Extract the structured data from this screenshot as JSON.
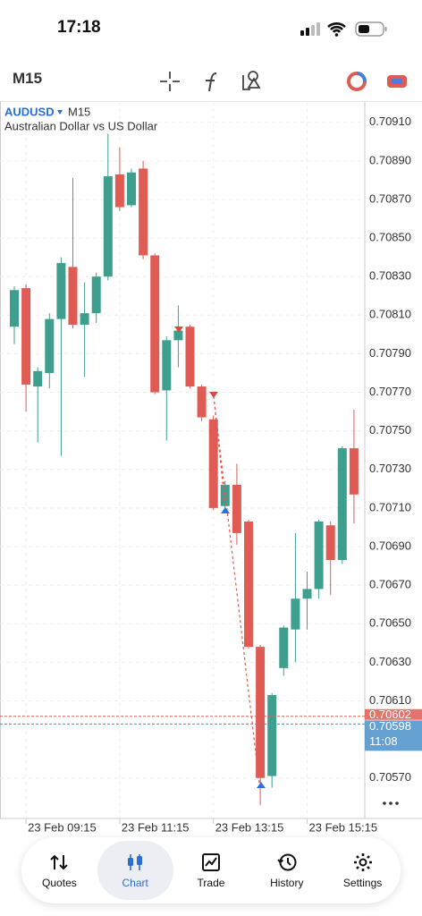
{
  "status_bar": {
    "time": "17:18"
  },
  "toolbar": {
    "timeframe": "M15"
  },
  "chart_data": {
    "type": "candlestick",
    "title": "AUDUSD",
    "subtitle": "M15",
    "description": "Australian Dollar vs US Dollar",
    "categories": [
      null,
      "23 Feb 09:15",
      null,
      null,
      null,
      null,
      null,
      null,
      null,
      "23 Feb 11:15",
      null,
      null,
      null,
      null,
      null,
      null,
      null,
      "23 Feb 13:15",
      null,
      null,
      null,
      null,
      null,
      null,
      null,
      "23 Feb 15:15",
      null,
      null,
      null,
      null
    ],
    "series": {
      "open": [
        0.70804,
        0.70824,
        0.70773,
        0.7078,
        0.70808,
        0.70835,
        0.70805,
        0.70811,
        0.7083,
        0.70883,
        0.70867,
        0.70886,
        0.70841,
        0.70771,
        0.70797,
        0.70804,
        0.70773,
        0.70756,
        0.70711,
        0.70722,
        0.70703,
        0.70638,
        0.70571,
        0.70627,
        0.70647,
        0.70663,
        0.70668,
        0.70701,
        0.70683,
        0.70741
      ],
      "high": [
        0.70825,
        0.70826,
        0.70783,
        0.70811,
        0.7084,
        0.70881,
        0.70827,
        0.70832,
        0.70904,
        0.70897,
        0.70886,
        0.7089,
        0.70842,
        0.70799,
        0.70815,
        0.70805,
        0.70774,
        0.70758,
        0.70724,
        0.70733,
        0.70704,
        0.70639,
        0.70614,
        0.70649,
        0.70697,
        0.70677,
        0.70704,
        0.70703,
        0.70742,
        0.70761
      ],
      "low": [
        0.70795,
        0.7076,
        0.70744,
        0.70772,
        0.70737,
        0.70803,
        0.70778,
        0.70806,
        0.70828,
        0.70864,
        0.70866,
        0.70839,
        0.70769,
        0.70745,
        0.70783,
        0.70772,
        0.70755,
        0.70709,
        0.7071,
        0.70691,
        0.70637,
        0.70556,
        0.70565,
        0.70623,
        0.7063,
        0.70647,
        0.70663,
        0.70665,
        0.70681,
        0.70702
      ],
      "close": [
        0.70823,
        0.70774,
        0.70781,
        0.70808,
        0.70837,
        0.70805,
        0.70811,
        0.7083,
        0.70882,
        0.70866,
        0.70884,
        0.70841,
        0.7077,
        0.70797,
        0.70802,
        0.70773,
        0.70757,
        0.7071,
        0.70722,
        0.70697,
        0.70638,
        0.7057,
        0.70613,
        0.70648,
        0.70663,
        0.70668,
        0.70703,
        0.70683,
        0.70741,
        0.70717
      ]
    },
    "up_color": "#3f9f8f",
    "down_color": "#e05b53",
    "ylim": [
      0.70549,
      0.70921
    ],
    "yticks": [
      {
        "value": 0.7091,
        "label": "0.70910"
      },
      {
        "value": 0.7089,
        "label": "0.70890"
      },
      {
        "value": 0.7087,
        "label": "0.70870"
      },
      {
        "value": 0.7085,
        "label": "0.70850"
      },
      {
        "value": 0.7083,
        "label": "0.70830"
      },
      {
        "value": 0.7081,
        "label": "0.70810"
      },
      {
        "value": 0.7079,
        "label": "0.70790"
      },
      {
        "value": 0.7077,
        "label": "0.70770"
      },
      {
        "value": 0.7075,
        "label": "0.70750"
      },
      {
        "value": 0.7073,
        "label": "0.70730"
      },
      {
        "value": 0.7071,
        "label": "0.70710"
      },
      {
        "value": 0.7069,
        "label": "0.70690"
      },
      {
        "value": 0.7067,
        "label": "0.70670"
      },
      {
        "value": 0.7065,
        "label": "0.70650"
      },
      {
        "value": 0.7063,
        "label": "0.70630"
      },
      {
        "value": 0.7061,
        "label": "0.70610"
      },
      {
        "value": 0.7057,
        "label": "0.70570"
      }
    ],
    "grid": true,
    "price_lines": [
      {
        "value": 0.70602,
        "label": "0.70602",
        "color": "#e05b53"
      },
      {
        "value": 0.70598,
        "label": "0.70598",
        "time": "11:08",
        "color": "#4a90c8"
      }
    ]
  },
  "nav": {
    "tabs": [
      "Quotes",
      "Chart",
      "Trade",
      "History",
      "Settings"
    ],
    "active": "Chart"
  }
}
